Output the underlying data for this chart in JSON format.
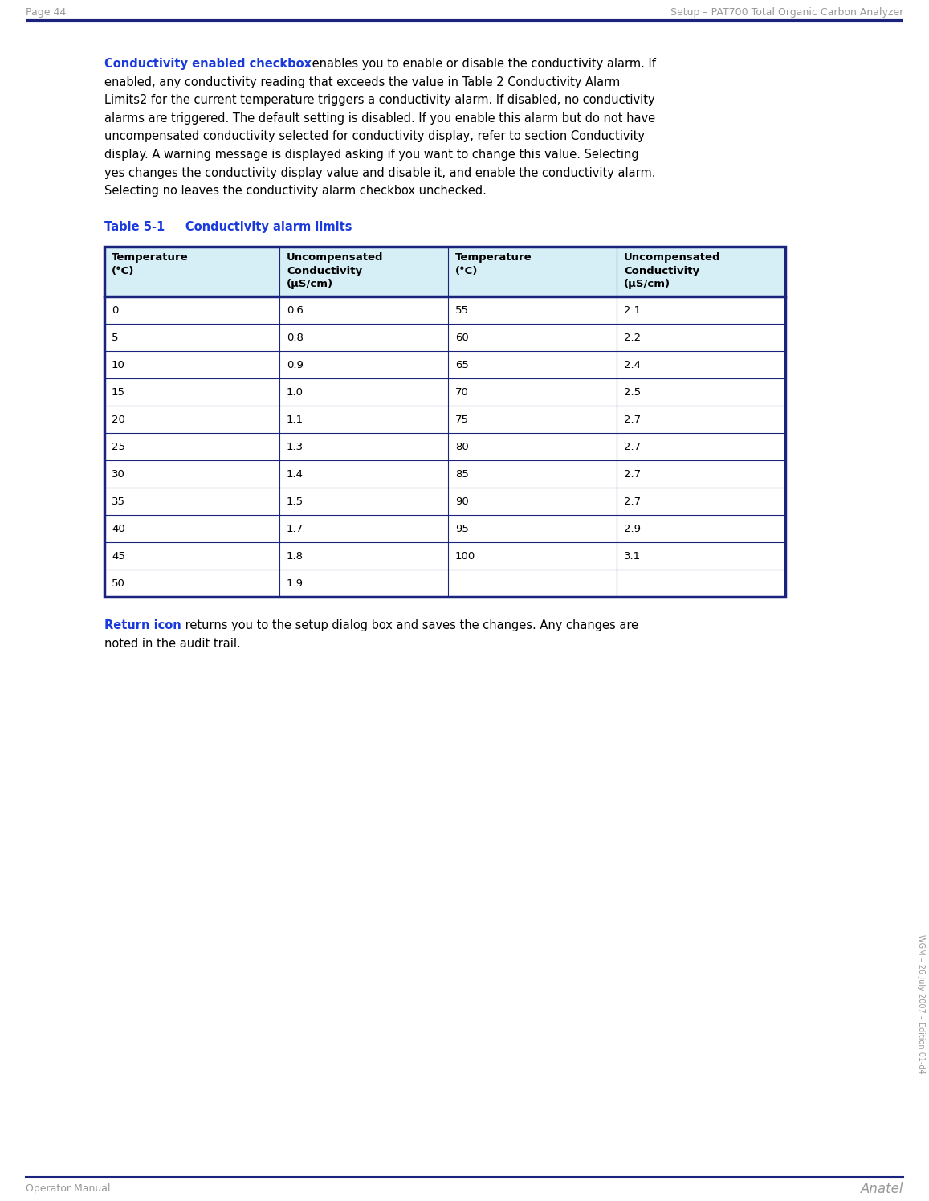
{
  "page_header_left": "Page 44",
  "page_header_right": "Setup – PAT700 Total Organic Carbon Analyzer",
  "page_footer_left": "Operator Manual",
  "page_footer_right": "Anatel",
  "header_line_color": "#1a237e",
  "header_footer_text_color": "#999999",
  "body_text_color": "#000000",
  "bold_text_color": "#1a3adb",
  "table_title_color": "#1a3adb",
  "table_header_bg": "#d6eef5",
  "table_border_color": "#1a237e",
  "table_headers": [
    "Temperature\n(°C)",
    "Uncompensated\nConductivity\n(µS/cm)",
    "Temperature\n(°C)",
    "Uncompensated\nConductivity\n(µS/cm)"
  ],
  "table_data": [
    [
      "0",
      "0.6",
      "55",
      "2.1"
    ],
    [
      "5",
      "0.8",
      "60",
      "2.2"
    ],
    [
      "10",
      "0.9",
      "65",
      "2.4"
    ],
    [
      "15",
      "1.0",
      "70",
      "2.5"
    ],
    [
      "20",
      "1.1",
      "75",
      "2.7"
    ],
    [
      "25",
      "1.3",
      "80",
      "2.7"
    ],
    [
      "30",
      "1.4",
      "85",
      "2.7"
    ],
    [
      "35",
      "1.5",
      "90",
      "2.7"
    ],
    [
      "40",
      "1.7",
      "95",
      "2.9"
    ],
    [
      "45",
      "1.8",
      "100",
      "3.1"
    ],
    [
      "50",
      "1.9",
      "",
      ""
    ]
  ],
  "p1_bold": "Conductivity enabled checkbox",
  "p1_lines": [
    " enables you to enable or disable the conductivity alarm. If",
    "enabled, any conductivity reading that exceeds the value in Table 2 Conductivity Alarm",
    "Limits2 for the current temperature triggers a conductivity alarm. If disabled, no conductivity",
    "alarms are triggered. The default setting is disabled. If you enable this alarm but do not have",
    "uncompensated conductivity selected for conductivity display, refer to section Conductivity",
    "display. A warning message is displayed asking if you want to change this value. Selecting",
    "yes changes the conductivity display value and disable it, and enable the conductivity alarm.",
    "Selecting no leaves the conductivity alarm checkbox unchecked."
  ],
  "table_title": "Table 5-1     Conductivity alarm limits",
  "p2_bold": "Return icon",
  "p2_lines": [
    " returns you to the setup dialog box and saves the changes. Any changes are",
    "noted in the audit trail."
  ],
  "sidebar_text": "WGM – 26 July 2007 – Edition 01-d4",
  "background_color": "#ffffff",
  "body_font_size": 10.5,
  "table_font_size": 9.5,
  "header_font_size": 9.0
}
